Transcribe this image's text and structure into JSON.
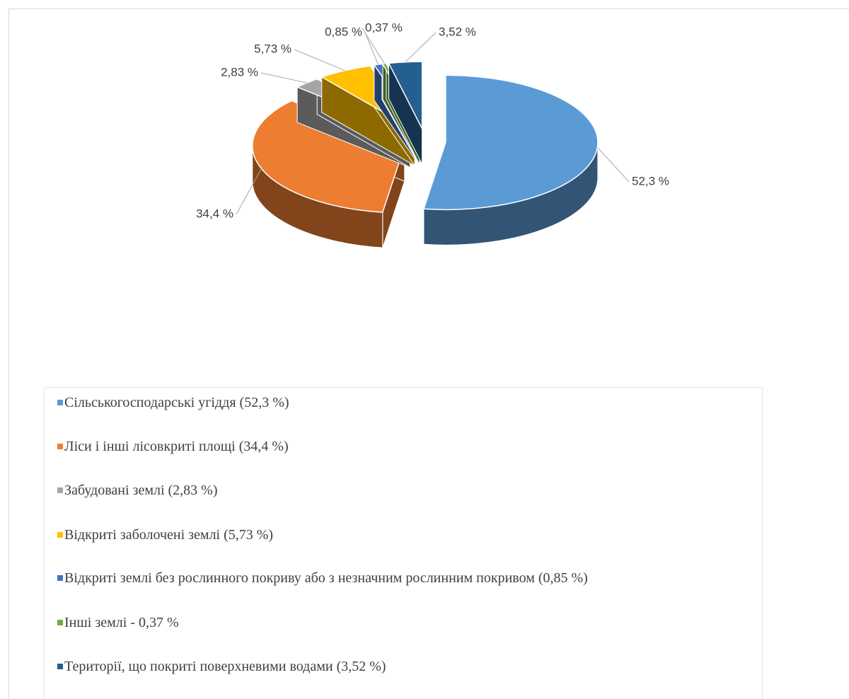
{
  "chart_data": {
    "type": "pie",
    "categories": [
      "Сільськогосподарські угіддя (52,3 %)",
      "Ліси і інші лісовкриті площі (34,4 %)",
      "Забудовані землі (2,83 %)",
      "Відкриті заболочені землі (5,73 %)",
      "Відкриті землі без рослинного покриву або з незначним рослинним покривом (0,85 %)",
      "Інші землі - 0,37 %",
      "Території, що покриті поверхневими водами (3,52 %)"
    ],
    "values": [
      52.3,
      34.4,
      2.83,
      5.73,
      0.85,
      0.37,
      3.52
    ],
    "value_labels": [
      "52,3 %",
      "34,4 %",
      "2,83 %",
      "5,73 %",
      "0,85 %",
      "0,37 %",
      "3,52 %"
    ],
    "colors": [
      "#5b9bd5",
      "#ed7d31",
      "#a5a5a5",
      "#ffc000",
      "#4472c4",
      "#70ad47",
      "#255e91"
    ]
  }
}
